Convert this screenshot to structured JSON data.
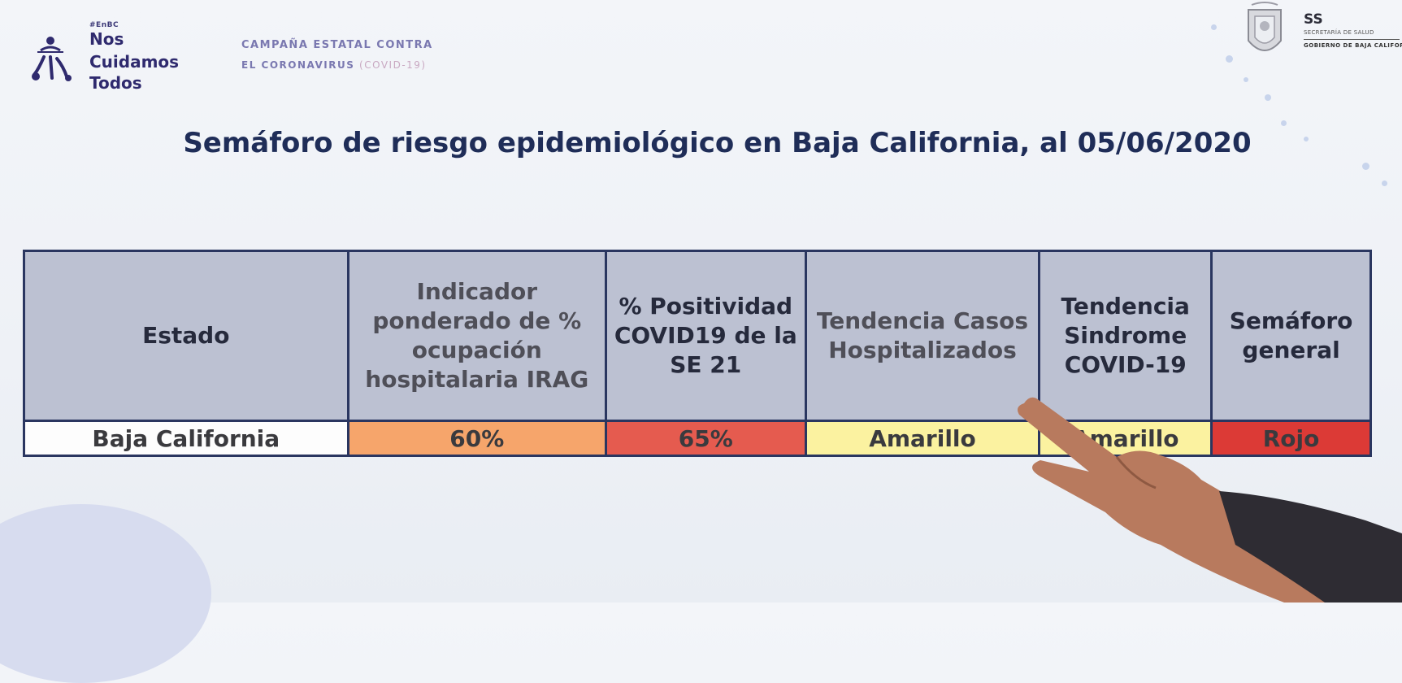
{
  "header": {
    "logo": {
      "tag": "#EnBC",
      "line1": "Nos",
      "line2": "Cuidamos",
      "line3": "Todos"
    },
    "campaign": {
      "line1": "CAMPAÑA ESTATAL CONTRA",
      "line2_main": "EL CORONAVIRUS ",
      "line2_covid": "(COVID-19)"
    },
    "right": {
      "ss": "SS",
      "subtitle": "SECRETARÍA DE SALUD",
      "government": "GOBIERNO DE BAJA CALIFORNIA"
    }
  },
  "title": "Semáforo de riesgo epidemiológico en Baja California, al 05/06/2020",
  "table": {
    "headers": [
      "Estado",
      "Indicador ponderado de % ocupación hospitalaria IRAG",
      "% Positividad COVID19 de la SE 21",
      "Tendencia Casos Hospitalizados",
      "Tendencia Sindrome COVID-19",
      "Semáforo general"
    ],
    "row": {
      "estado": "Baja California",
      "ocupacion": "60%",
      "positividad": "65%",
      "tendencia_hosp": "Amarillo",
      "tendencia_sindrome": "Amarillo",
      "semaforo": "Rojo"
    }
  },
  "colors": {
    "header_bg": "#bcc1d2",
    "orange": "#f6a56b",
    "red": "#e55b4f",
    "yellow": "#fbf2a0",
    "dark_red": "#dc3a36",
    "title": "#1f2d58"
  }
}
